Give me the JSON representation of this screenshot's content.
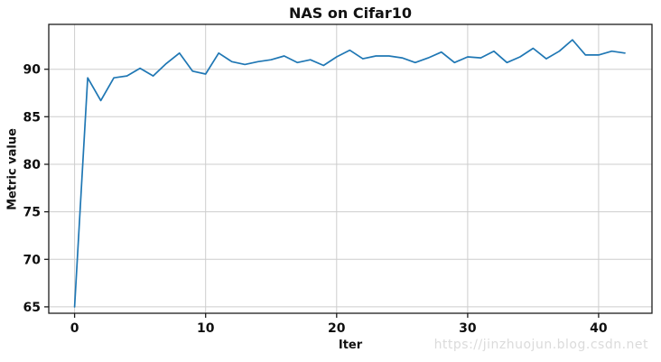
{
  "figure": {
    "watermark": "https://jinzhuojun.blog.csdn.net"
  },
  "chart_data": {
    "type": "line",
    "title": "NAS on Cifar10",
    "xlabel": "Iter",
    "ylabel": "Metric value",
    "xticks": [
      0,
      10,
      20,
      30,
      40
    ],
    "yticks": [
      65,
      70,
      75,
      80,
      85,
      90
    ],
    "xlim": [
      -1.97,
      44.07
    ],
    "ylim": [
      64.33,
      94.72
    ],
    "grid": true,
    "legend": "none",
    "colors": {
      "line": "#1f77b4",
      "grid": "#cdcdcd",
      "spine": "#1c1c1c",
      "tick_text": "#0f0f0f"
    },
    "series": [
      {
        "name": "metric",
        "x": [
          0,
          1,
          2,
          3,
          4,
          5,
          6,
          7,
          8,
          9,
          10,
          11,
          12,
          13,
          14,
          15,
          16,
          17,
          18,
          19,
          20,
          21,
          22,
          23,
          24,
          25,
          26,
          27,
          28,
          29,
          30,
          31,
          32,
          33,
          34,
          35,
          36,
          37,
          38,
          39,
          40,
          41,
          42
        ],
        "y": [
          65.0,
          89.1,
          86.7,
          89.1,
          89.3,
          90.1,
          89.3,
          90.6,
          91.7,
          89.8,
          89.5,
          91.7,
          90.8,
          90.5,
          90.8,
          91.0,
          91.4,
          90.7,
          91.0,
          90.4,
          91.3,
          92.0,
          91.1,
          91.4,
          91.4,
          91.2,
          90.7,
          91.2,
          91.8,
          90.7,
          91.3,
          91.2,
          91.9,
          90.7,
          91.3,
          92.2,
          91.1,
          91.9,
          93.1,
          91.5,
          91.5,
          91.9,
          91.7
        ]
      }
    ]
  }
}
